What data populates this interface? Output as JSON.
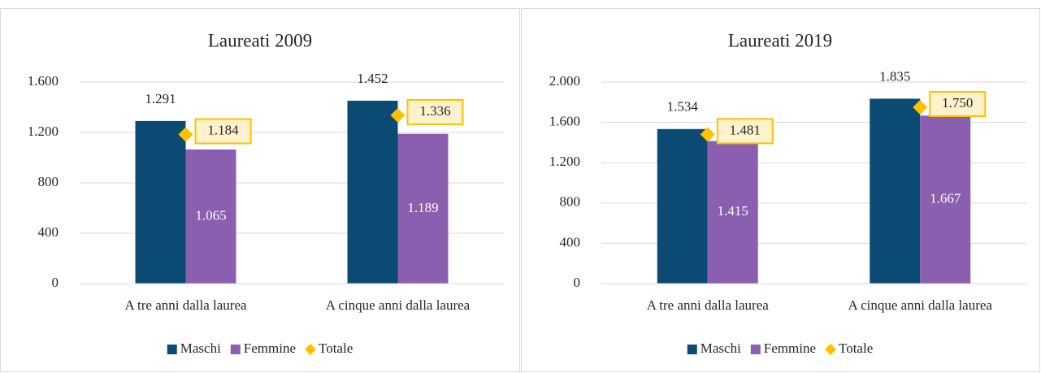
{
  "chart_data": [
    {
      "type": "bar",
      "title": "Laureati 2009",
      "categories": [
        "A tre anni dalla laurea",
        "A cinque anni dalla laurea"
      ],
      "series": [
        {
          "name": "Maschi",
          "color": "#0b4a72",
          "values": [
            1291,
            1452
          ],
          "value_labels": [
            "1.291",
            "1.452"
          ]
        },
        {
          "name": "Femmine",
          "color": "#8a5fb0",
          "values": [
            1065,
            1189
          ],
          "value_labels": [
            "1.065",
            "1.189"
          ]
        },
        {
          "name": "Totale",
          "color": "#ffc000",
          "type": "marker",
          "values": [
            1184,
            1336
          ],
          "value_labels": [
            "1.184",
            "1.336"
          ]
        }
      ],
      "ylim": [
        0,
        1600
      ],
      "yticks": [
        0,
        400,
        800,
        {
          "value": 1200,
          "label": "1.200"
        },
        {
          "value": 1600,
          "label": "1.600"
        }
      ],
      "grid": true,
      "legend": "bottom"
    },
    {
      "type": "bar",
      "title": "Laureati 2019",
      "categories": [
        "A tre anni dalla laurea",
        "A cinque anni dalla laurea"
      ],
      "series": [
        {
          "name": "Maschi",
          "color": "#0b4a72",
          "values": [
            1534,
            1835
          ],
          "value_labels": [
            "1.534",
            "1.835"
          ]
        },
        {
          "name": "Femmine",
          "color": "#8a5fb0",
          "values": [
            1415,
            1667
          ],
          "value_labels": [
            "1.415",
            "1.667"
          ]
        },
        {
          "name": "Totale",
          "color": "#ffc000",
          "type": "marker",
          "values": [
            1481,
            1750
          ],
          "value_labels": [
            "1.481",
            "1.750"
          ]
        }
      ],
      "ylim": [
        0,
        2000
      ],
      "yticks": [
        0,
        400,
        800,
        {
          "value": 1200,
          "label": "1.200"
        },
        {
          "value": 1600,
          "label": "1.600"
        },
        {
          "value": 2000,
          "label": "2.000"
        }
      ],
      "grid": true,
      "legend": "bottom"
    }
  ]
}
